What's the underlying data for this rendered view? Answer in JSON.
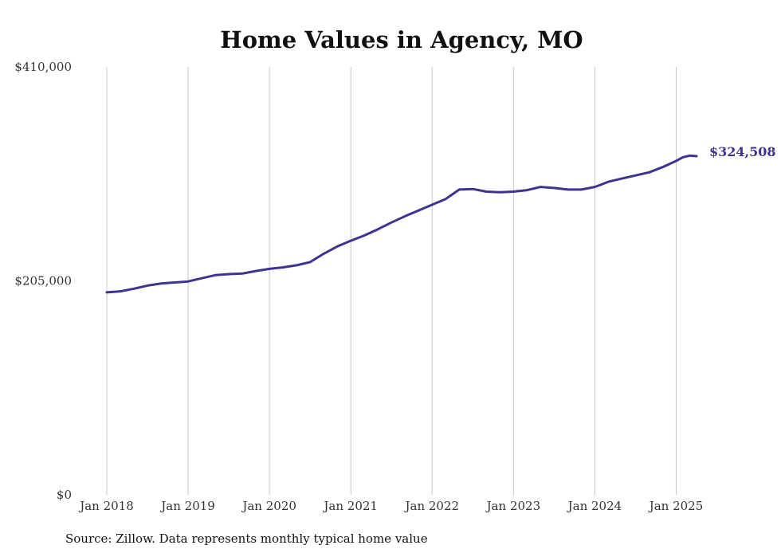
{
  "chart_data": {
    "type": "line",
    "title": "Home Values in Agency, MO",
    "xlabel": "",
    "ylabel": "",
    "ylim": [
      0,
      410000
    ],
    "y_ticks": [
      "$410,000",
      "$205,000",
      "$0"
    ],
    "y_tick_values": [
      410000,
      205000,
      0
    ],
    "x_ticks": [
      "Jan 2018",
      "Jan 2019",
      "Jan 2020",
      "Jan 2021",
      "Jan 2022",
      "Jan 2023",
      "Jan 2024",
      "Jan 2025"
    ],
    "x_tick_values": [
      "2018-01",
      "2019-01",
      "2020-01",
      "2021-01",
      "2022-01",
      "2023-01",
      "2024-01",
      "2025-01"
    ],
    "xlim": [
      "2018-01",
      "2025-04"
    ],
    "grid": "vertical",
    "line_color": "#3d3391",
    "series": [
      {
        "values": [
          [
            "2018-01",
            194000
          ],
          [
            "2018-03",
            195000
          ],
          [
            "2018-05",
            197500
          ],
          [
            "2018-07",
            200500
          ],
          [
            "2018-09",
            202500
          ],
          [
            "2018-11",
            203500
          ],
          [
            "2019-01",
            204500
          ],
          [
            "2019-03",
            207500
          ],
          [
            "2019-05",
            210500
          ],
          [
            "2019-07",
            211500
          ],
          [
            "2019-09",
            212000
          ],
          [
            "2019-11",
            214500
          ],
          [
            "2020-01",
            216500
          ],
          [
            "2020-03",
            218000
          ],
          [
            "2020-05",
            220000
          ],
          [
            "2020-07",
            223000
          ],
          [
            "2020-09",
            231000
          ],
          [
            "2020-11",
            238000
          ],
          [
            "2021-01",
            243500
          ],
          [
            "2021-03",
            248500
          ],
          [
            "2021-05",
            254500
          ],
          [
            "2021-07",
            261000
          ],
          [
            "2021-09",
            267000
          ],
          [
            "2021-11",
            272500
          ],
          [
            "2022-01",
            278000
          ],
          [
            "2022-03",
            283500
          ],
          [
            "2022-05",
            292500
          ],
          [
            "2022-07",
            293000
          ],
          [
            "2022-09",
            290500
          ],
          [
            "2022-11",
            290000
          ],
          [
            "2023-01",
            290500
          ],
          [
            "2023-03",
            292000
          ],
          [
            "2023-05",
            295000
          ],
          [
            "2023-07",
            294000
          ],
          [
            "2023-09",
            292500
          ],
          [
            "2023-11",
            292500
          ],
          [
            "2024-01",
            295000
          ],
          [
            "2024-03",
            300000
          ],
          [
            "2024-05",
            303000
          ],
          [
            "2024-07",
            306000
          ],
          [
            "2024-09",
            309000
          ],
          [
            "2024-11",
            314000
          ],
          [
            "2025-01",
            320000
          ],
          [
            "2025-02",
            323500
          ],
          [
            "2025-03",
            325000
          ],
          [
            "2025-04",
            324508
          ]
        ]
      }
    ],
    "end_label": "$324,508"
  },
  "source": "Source: Zillow. Data represents monthly typical home value"
}
